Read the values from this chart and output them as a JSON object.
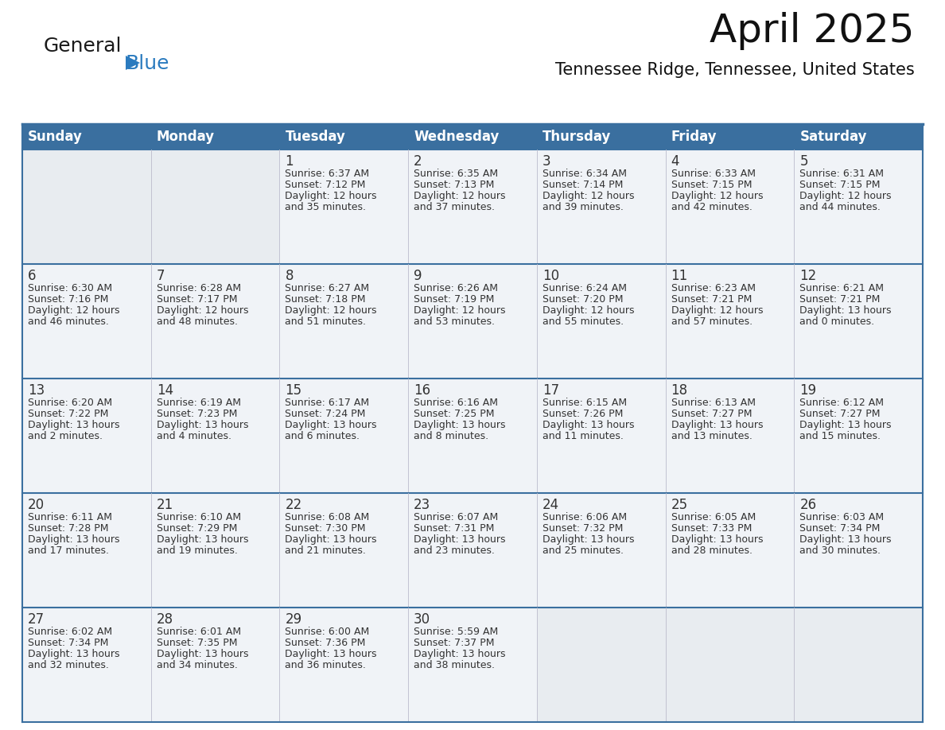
{
  "title": "April 2025",
  "subtitle": "Tennessee Ridge, Tennessee, United States",
  "header_color": "#3a6f9f",
  "header_text_color": "#ffffff",
  "cell_bg_color": "#f0f3f7",
  "empty_cell_bg": "#e8ecf0",
  "cell_border_color": "#3a6f9f",
  "text_color": "#333333",
  "day_headers": [
    "Sunday",
    "Monday",
    "Tuesday",
    "Wednesday",
    "Thursday",
    "Friday",
    "Saturday"
  ],
  "logo_general_color": "#1a1a1a",
  "logo_blue_color": "#2b7bbf",
  "logo_triangle_color": "#2b7bbf",
  "title_fontsize": 36,
  "subtitle_fontsize": 15,
  "header_fontsize": 12,
  "day_num_fontsize": 12,
  "cell_text_fontsize": 9,
  "weeks": [
    [
      {
        "day": "",
        "sunrise": "",
        "sunset": "",
        "daylight": ""
      },
      {
        "day": "",
        "sunrise": "",
        "sunset": "",
        "daylight": ""
      },
      {
        "day": "1",
        "sunrise": "Sunrise: 6:37 AM",
        "sunset": "Sunset: 7:12 PM",
        "daylight": "Daylight: 12 hours\nand 35 minutes."
      },
      {
        "day": "2",
        "sunrise": "Sunrise: 6:35 AM",
        "sunset": "Sunset: 7:13 PM",
        "daylight": "Daylight: 12 hours\nand 37 minutes."
      },
      {
        "day": "3",
        "sunrise": "Sunrise: 6:34 AM",
        "sunset": "Sunset: 7:14 PM",
        "daylight": "Daylight: 12 hours\nand 39 minutes."
      },
      {
        "day": "4",
        "sunrise": "Sunrise: 6:33 AM",
        "sunset": "Sunset: 7:15 PM",
        "daylight": "Daylight: 12 hours\nand 42 minutes."
      },
      {
        "day": "5",
        "sunrise": "Sunrise: 6:31 AM",
        "sunset": "Sunset: 7:15 PM",
        "daylight": "Daylight: 12 hours\nand 44 minutes."
      }
    ],
    [
      {
        "day": "6",
        "sunrise": "Sunrise: 6:30 AM",
        "sunset": "Sunset: 7:16 PM",
        "daylight": "Daylight: 12 hours\nand 46 minutes."
      },
      {
        "day": "7",
        "sunrise": "Sunrise: 6:28 AM",
        "sunset": "Sunset: 7:17 PM",
        "daylight": "Daylight: 12 hours\nand 48 minutes."
      },
      {
        "day": "8",
        "sunrise": "Sunrise: 6:27 AM",
        "sunset": "Sunset: 7:18 PM",
        "daylight": "Daylight: 12 hours\nand 51 minutes."
      },
      {
        "day": "9",
        "sunrise": "Sunrise: 6:26 AM",
        "sunset": "Sunset: 7:19 PM",
        "daylight": "Daylight: 12 hours\nand 53 minutes."
      },
      {
        "day": "10",
        "sunrise": "Sunrise: 6:24 AM",
        "sunset": "Sunset: 7:20 PM",
        "daylight": "Daylight: 12 hours\nand 55 minutes."
      },
      {
        "day": "11",
        "sunrise": "Sunrise: 6:23 AM",
        "sunset": "Sunset: 7:21 PM",
        "daylight": "Daylight: 12 hours\nand 57 minutes."
      },
      {
        "day": "12",
        "sunrise": "Sunrise: 6:21 AM",
        "sunset": "Sunset: 7:21 PM",
        "daylight": "Daylight: 13 hours\nand 0 minutes."
      }
    ],
    [
      {
        "day": "13",
        "sunrise": "Sunrise: 6:20 AM",
        "sunset": "Sunset: 7:22 PM",
        "daylight": "Daylight: 13 hours\nand 2 minutes."
      },
      {
        "day": "14",
        "sunrise": "Sunrise: 6:19 AM",
        "sunset": "Sunset: 7:23 PM",
        "daylight": "Daylight: 13 hours\nand 4 minutes."
      },
      {
        "day": "15",
        "sunrise": "Sunrise: 6:17 AM",
        "sunset": "Sunset: 7:24 PM",
        "daylight": "Daylight: 13 hours\nand 6 minutes."
      },
      {
        "day": "16",
        "sunrise": "Sunrise: 6:16 AM",
        "sunset": "Sunset: 7:25 PM",
        "daylight": "Daylight: 13 hours\nand 8 minutes."
      },
      {
        "day": "17",
        "sunrise": "Sunrise: 6:15 AM",
        "sunset": "Sunset: 7:26 PM",
        "daylight": "Daylight: 13 hours\nand 11 minutes."
      },
      {
        "day": "18",
        "sunrise": "Sunrise: 6:13 AM",
        "sunset": "Sunset: 7:27 PM",
        "daylight": "Daylight: 13 hours\nand 13 minutes."
      },
      {
        "day": "19",
        "sunrise": "Sunrise: 6:12 AM",
        "sunset": "Sunset: 7:27 PM",
        "daylight": "Daylight: 13 hours\nand 15 minutes."
      }
    ],
    [
      {
        "day": "20",
        "sunrise": "Sunrise: 6:11 AM",
        "sunset": "Sunset: 7:28 PM",
        "daylight": "Daylight: 13 hours\nand 17 minutes."
      },
      {
        "day": "21",
        "sunrise": "Sunrise: 6:10 AM",
        "sunset": "Sunset: 7:29 PM",
        "daylight": "Daylight: 13 hours\nand 19 minutes."
      },
      {
        "day": "22",
        "sunrise": "Sunrise: 6:08 AM",
        "sunset": "Sunset: 7:30 PM",
        "daylight": "Daylight: 13 hours\nand 21 minutes."
      },
      {
        "day": "23",
        "sunrise": "Sunrise: 6:07 AM",
        "sunset": "Sunset: 7:31 PM",
        "daylight": "Daylight: 13 hours\nand 23 minutes."
      },
      {
        "day": "24",
        "sunrise": "Sunrise: 6:06 AM",
        "sunset": "Sunset: 7:32 PM",
        "daylight": "Daylight: 13 hours\nand 25 minutes."
      },
      {
        "day": "25",
        "sunrise": "Sunrise: 6:05 AM",
        "sunset": "Sunset: 7:33 PM",
        "daylight": "Daylight: 13 hours\nand 28 minutes."
      },
      {
        "day": "26",
        "sunrise": "Sunrise: 6:03 AM",
        "sunset": "Sunset: 7:34 PM",
        "daylight": "Daylight: 13 hours\nand 30 minutes."
      }
    ],
    [
      {
        "day": "27",
        "sunrise": "Sunrise: 6:02 AM",
        "sunset": "Sunset: 7:34 PM",
        "daylight": "Daylight: 13 hours\nand 32 minutes."
      },
      {
        "day": "28",
        "sunrise": "Sunrise: 6:01 AM",
        "sunset": "Sunset: 7:35 PM",
        "daylight": "Daylight: 13 hours\nand 34 minutes."
      },
      {
        "day": "29",
        "sunrise": "Sunrise: 6:00 AM",
        "sunset": "Sunset: 7:36 PM",
        "daylight": "Daylight: 13 hours\nand 36 minutes."
      },
      {
        "day": "30",
        "sunrise": "Sunrise: 5:59 AM",
        "sunset": "Sunset: 7:37 PM",
        "daylight": "Daylight: 13 hours\nand 38 minutes."
      },
      {
        "day": "",
        "sunrise": "",
        "sunset": "",
        "daylight": ""
      },
      {
        "day": "",
        "sunrise": "",
        "sunset": "",
        "daylight": ""
      },
      {
        "day": "",
        "sunrise": "",
        "sunset": "",
        "daylight": ""
      }
    ]
  ]
}
